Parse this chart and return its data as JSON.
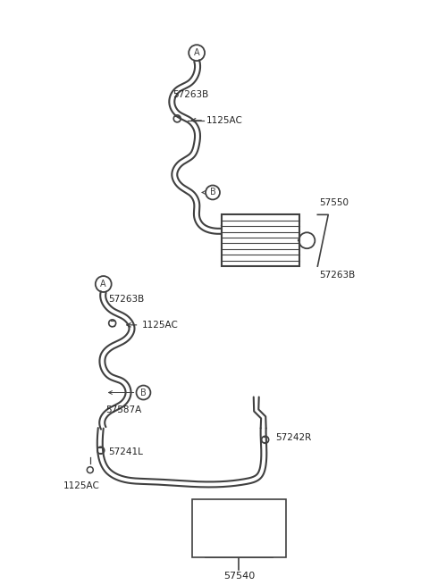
{
  "bg_color": "#ffffff",
  "line_color": "#404040",
  "text_color": "#222222",
  "fig_width": 4.8,
  "fig_height": 6.55,
  "dpi": 100,
  "labels": {
    "A_top": "A",
    "B_top": "B",
    "label_57263B_top": "57263B",
    "label_1125AC_top": "1125AC",
    "label_57550": "57550",
    "label_57263B_cooler": "57263B",
    "A_bottom": "A",
    "B_bottom": "B",
    "label_57263B_bottom": "57263B",
    "label_1125AC_bottom": "1125AC",
    "label_57587A": "57587A",
    "label_57242R": "57242R",
    "label_57241L": "57241L",
    "label_1125AC_bot2": "1125AC",
    "box_57241L": "57241L",
    "box_57242R": "57242R",
    "box_57263B": "57263B",
    "box_57587A": "57587A",
    "label_57540": "57540"
  }
}
